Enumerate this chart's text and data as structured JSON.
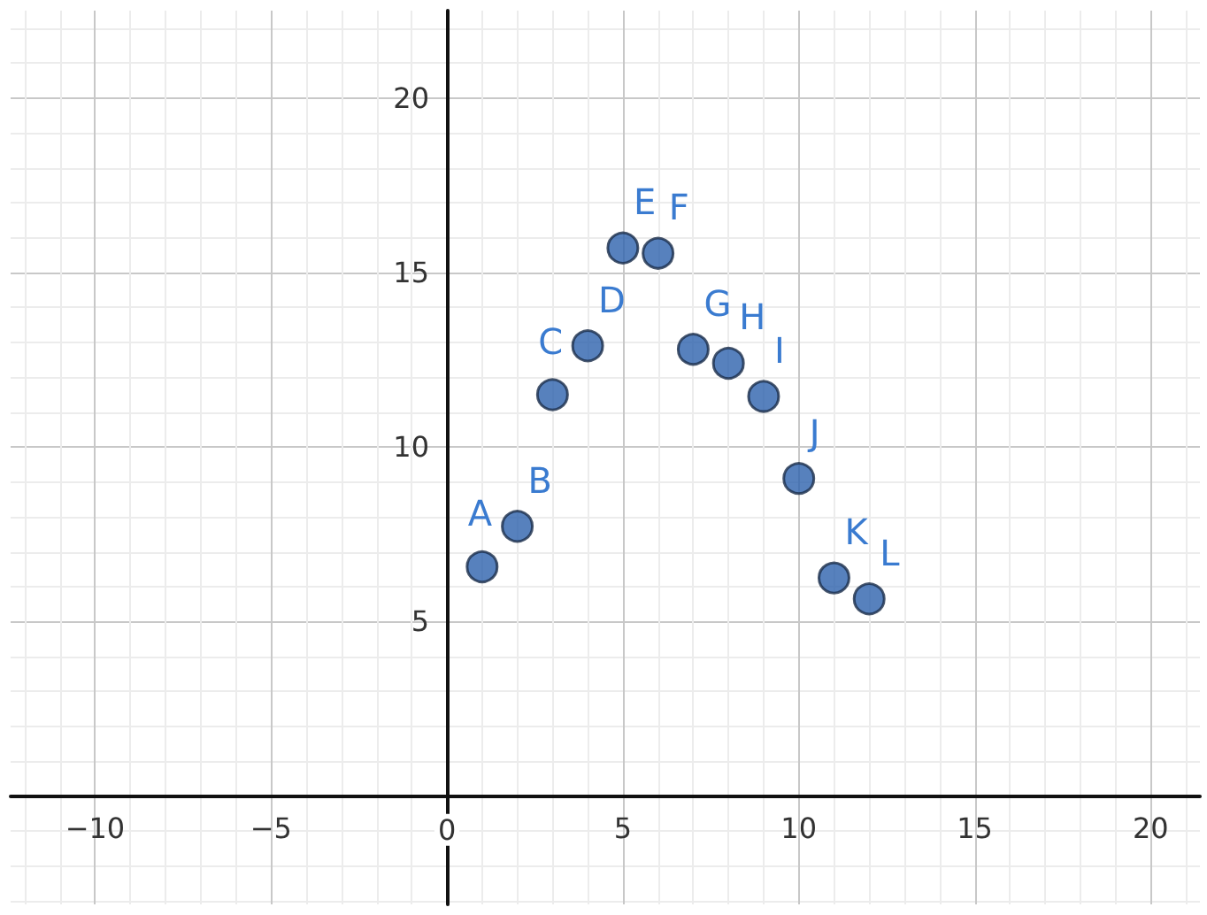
{
  "chart_data": {
    "type": "scatter",
    "x": [
      1,
      2,
      3,
      4,
      5,
      6,
      7,
      8,
      9,
      10,
      11,
      12
    ],
    "series": [
      {
        "color": "#2d62ad",
        "values": [
          6.57,
          7.73,
          11.5,
          12.9,
          15.7,
          15.55,
          12.8,
          12.4,
          11.45,
          9.1,
          6.25,
          5.65
        ]
      }
    ],
    "annotations": [
      {
        "text": "A",
        "x": 1,
        "y": 6.57
      },
      {
        "text": "B",
        "x": 2,
        "y": 7.73
      },
      {
        "text": "C",
        "x": 3,
        "y": 11.5
      },
      {
        "text": "D",
        "x": 4,
        "y": 12.9
      },
      {
        "text": "E",
        "x": 5,
        "y": 15.7
      },
      {
        "text": "F",
        "x": 6,
        "y": 15.55
      },
      {
        "text": "G",
        "x": 7,
        "y": 12.8
      },
      {
        "text": "H",
        "x": 8,
        "y": 12.4
      },
      {
        "text": "I",
        "x": 9,
        "y": 11.45
      },
      {
        "text": "J",
        "x": 10,
        "y": 9.1
      },
      {
        "text": "K",
        "x": 11,
        "y": 6.25
      },
      {
        "text": "L",
        "x": 12,
        "y": 5.65
      }
    ],
    "xlim": [
      -12.4,
      21.4
    ],
    "ylim": [
      -3.1,
      22.5
    ],
    "xticks": [
      -10,
      -5,
      0,
      5,
      10,
      15,
      20
    ],
    "yticks": [
      5,
      10,
      15,
      20
    ],
    "grid": true,
    "marker": "circle"
  }
}
